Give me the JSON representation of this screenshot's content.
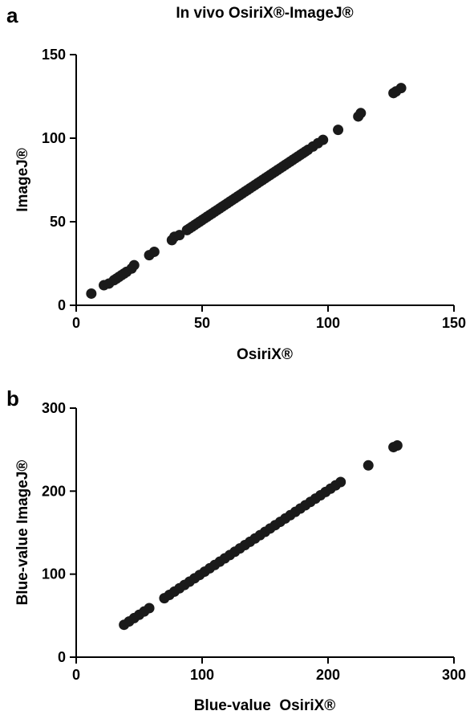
{
  "chart_data": [
    {
      "type": "scatter",
      "panel": "a",
      "title": "In vivo OsiriX®-ImageJ®",
      "xlabel": "OsiriX®",
      "ylabel": "ImageJ®",
      "xlim": [
        0,
        150
      ],
      "ylim": [
        0,
        150
      ],
      "xticks": [
        "0",
        "50",
        "100",
        "150"
      ],
      "yticks": [
        "0",
        "50",
        "100",
        "150"
      ],
      "grid": false,
      "marker_color": "#1a1a1a",
      "series": [
        {
          "x": [
            6,
            11,
            13,
            15,
            16,
            17,
            18,
            19,
            20,
            22,
            23,
            29,
            31,
            38,
            39,
            41,
            44,
            45,
            46,
            47,
            48,
            49,
            50,
            51,
            52,
            53,
            54,
            55,
            56,
            57,
            58,
            59,
            60,
            61,
            62,
            63,
            64,
            65,
            66,
            67,
            68,
            69,
            70,
            71,
            72,
            73,
            74,
            75,
            76,
            77,
            78,
            79,
            80,
            81,
            82,
            83,
            84,
            85,
            86,
            87,
            88,
            89,
            90,
            91,
            92,
            94,
            96,
            98,
            104,
            112,
            113,
            126,
            127,
            129
          ],
          "y": [
            7,
            12,
            13,
            15,
            16,
            17,
            18,
            19,
            20,
            22,
            24,
            30,
            32,
            39,
            41,
            42,
            45,
            46,
            47,
            48,
            49,
            50,
            51,
            52,
            53,
            54,
            55,
            56,
            57,
            58,
            59,
            60,
            61,
            62,
            63,
            64,
            65,
            66,
            67,
            68,
            69,
            70,
            71,
            72,
            73,
            74,
            75,
            76,
            77,
            78,
            79,
            80,
            81,
            82,
            83,
            84,
            85,
            86,
            87,
            88,
            89,
            90,
            91,
            92,
            93,
            95,
            97,
            99,
            105,
            113,
            115,
            127,
            128,
            130
          ]
        }
      ]
    },
    {
      "type": "scatter",
      "panel": "b",
      "title": "",
      "xlabel": "Blue-value  OsiriX®",
      "ylabel": "Blue-value ImageJ®",
      "xlim": [
        0,
        300
      ],
      "ylim": [
        0,
        300
      ],
      "xticks": [
        "0",
        "100",
        "200",
        "300"
      ],
      "yticks": [
        "0",
        "100",
        "200",
        "300"
      ],
      "grid": false,
      "marker_color": "#1a1a1a",
      "series": [
        {
          "x": [
            38,
            42,
            46,
            50,
            54,
            58,
            70,
            74,
            78,
            82,
            86,
            90,
            94,
            98,
            102,
            106,
            110,
            114,
            118,
            122,
            126,
            130,
            134,
            138,
            142,
            146,
            150,
            154,
            158,
            162,
            166,
            170,
            174,
            178,
            182,
            186,
            190,
            194,
            198,
            202,
            206,
            210,
            232,
            252,
            255
          ],
          "y": [
            39,
            43,
            47,
            51,
            55,
            59,
            71,
            75,
            79,
            83,
            87,
            91,
            95,
            99,
            103,
            107,
            111,
            115,
            119,
            123,
            127,
            131,
            135,
            139,
            143,
            147,
            151,
            155,
            159,
            163,
            167,
            171,
            175,
            179,
            183,
            187,
            191,
            195,
            199,
            203,
            207,
            211,
            231,
            253,
            255
          ]
        }
      ]
    }
  ]
}
